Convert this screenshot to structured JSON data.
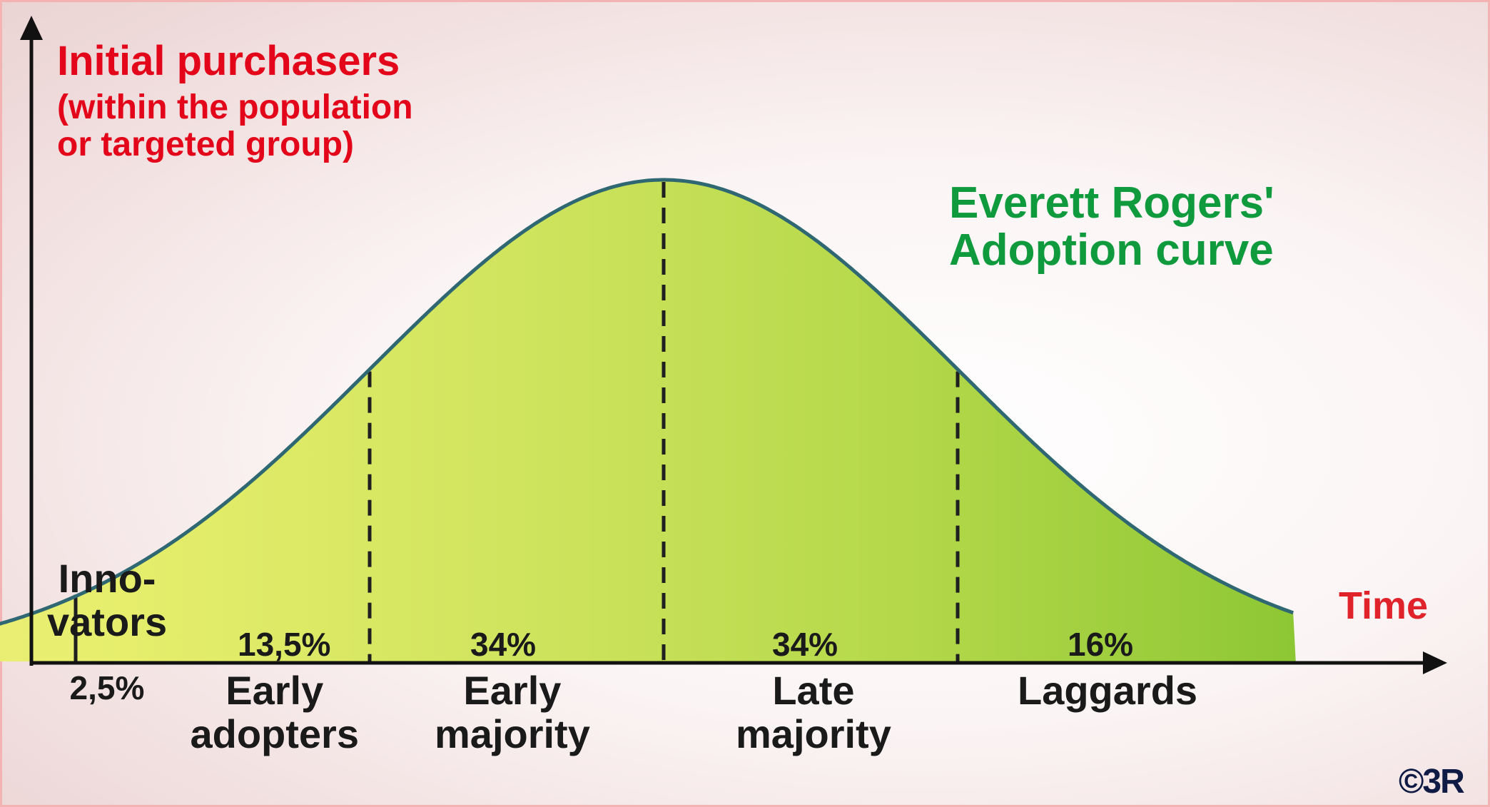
{
  "chart_data": {
    "type": "area",
    "title": "Everett Rogers' Adoption curve",
    "ylabel": "Initial purchasers",
    "ylabel_sub": [
      "(within the population",
      "or targeted group)"
    ],
    "xlabel": "Time",
    "distribution": "normal",
    "boundaries_sd": [
      -2,
      -1,
      0,
      1
    ],
    "x_range_sd": [
      -3.15,
      2.15
    ],
    "segments": [
      {
        "name_lines": [
          "Inno-",
          "vators"
        ],
        "percent": "2,5%"
      },
      {
        "name_lines": [
          "Early",
          "adopters"
        ],
        "percent": "13,5%"
      },
      {
        "name_lines": [
          "Early",
          "majority"
        ],
        "percent": "34%"
      },
      {
        "name_lines": [
          "Late",
          "majority"
        ],
        "percent": "34%"
      },
      {
        "name_lines": [
          "Laggards"
        ],
        "percent": "16%"
      }
    ],
    "fill_colors": [
      "#f0f080",
      "#e6ee6c",
      "#d0e45e",
      "#b4d84a",
      "#8ec734"
    ],
    "curve_color": "#2f6873",
    "copyright": "©3R"
  }
}
